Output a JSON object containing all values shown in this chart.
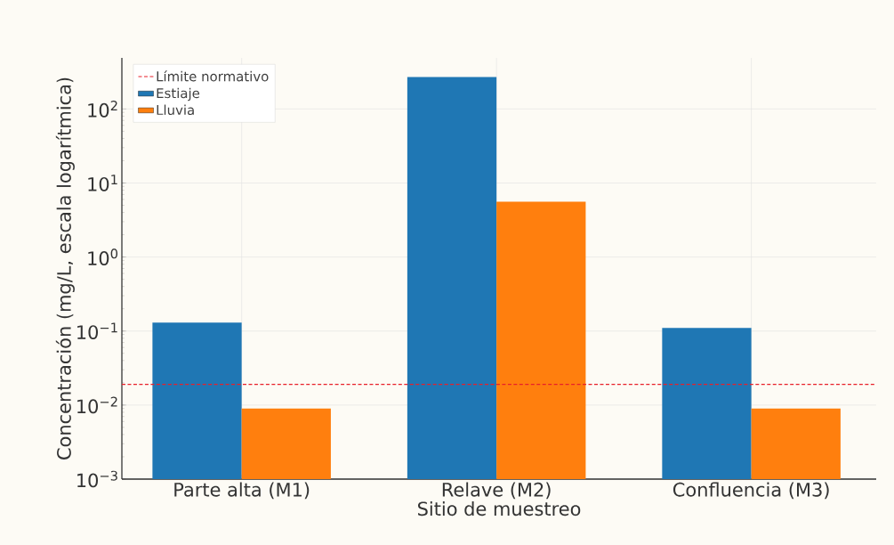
{
  "chart_data": {
    "type": "bar",
    "xlabel": "Sitio de muestreo",
    "ylabel": "Concentración (mg/L, escala logarítmica)",
    "categories": [
      "Parte alta (M1)",
      "Relave (M2)",
      "Confluencia (M3)"
    ],
    "series": [
      {
        "name": "Estiaje",
        "color": "#1f77b4",
        "values": [
          0.13,
          270,
          0.11
        ]
      },
      {
        "name": "Lluvia",
        "color": "#ff7f0e",
        "values": [
          0.009,
          5.6,
          0.009
        ]
      }
    ],
    "log": "y",
    "ylim": [
      0.001,
      490
    ],
    "yticks": [
      {
        "value": 0.001,
        "label": "10$^{−3}$"
      },
      {
        "value": 0.01,
        "label": "10$^{−2}$"
      },
      {
        "value": 0.1,
        "label": "10$^{−1}$"
      },
      {
        "value": 1,
        "label": "10$^{0}$"
      },
      {
        "value": 10,
        "label": "10$^{1}$"
      },
      {
        "value": 100,
        "label": "10$^{2}$"
      }
    ],
    "ref_lines": [
      {
        "axis": "y",
        "value": 0.019,
        "label": "Límite normativo",
        "color": "#e8202a",
        "line_style": "dashed"
      }
    ],
    "grid": true,
    "legend": "top left"
  }
}
